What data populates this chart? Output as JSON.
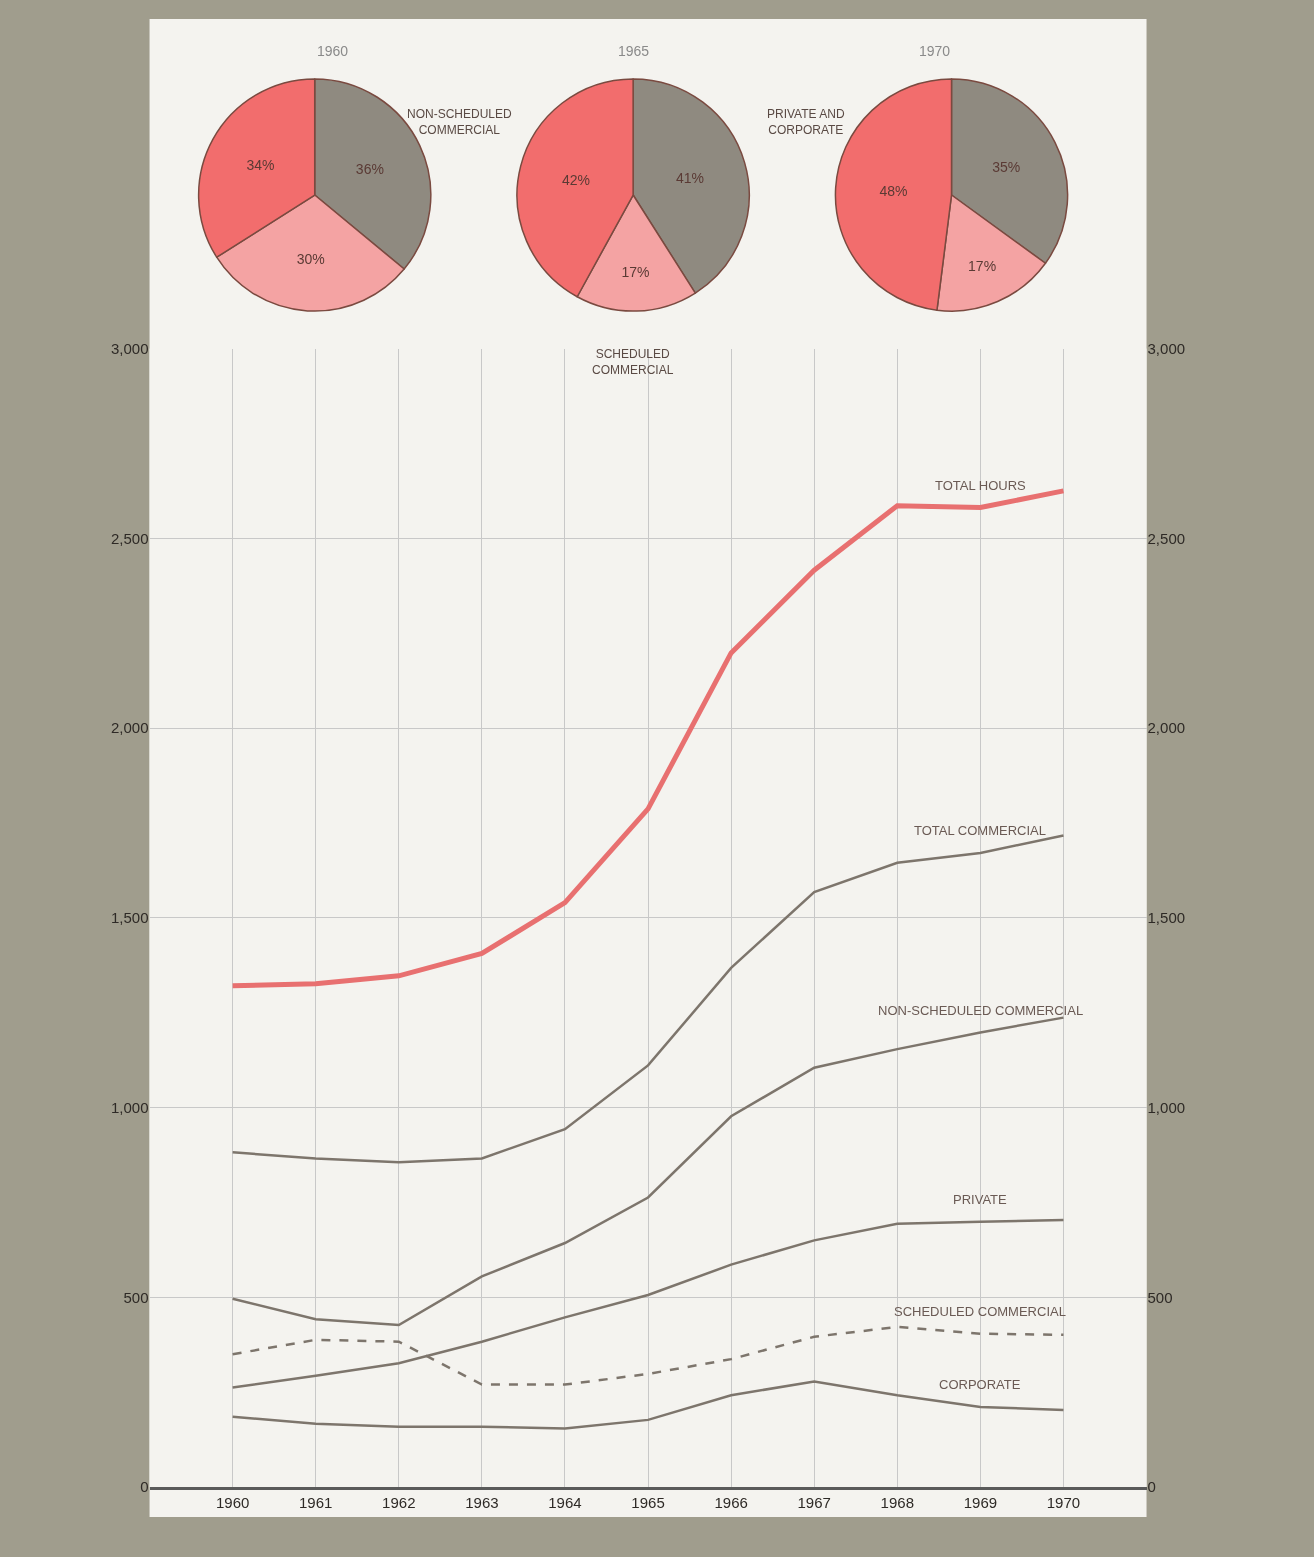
{
  "chart_data": [
    {
      "type": "pie",
      "title": "1960",
      "categories": [
        null,
        null,
        null
      ],
      "values": [
        36,
        30,
        34
      ],
      "colors": [
        "#8f8a80",
        "#f4a3a3",
        "#f26d6d"
      ],
      "value_labels": [
        "36%",
        "30%",
        "34%"
      ]
    },
    {
      "type": "pie",
      "title": "1965",
      "categories": [
        "PRIVATE AND CORPORATE",
        "SCHEDULED COMMERCIAL",
        "NON-SCHEDULED COMMERCIAL"
      ],
      "values": [
        41,
        17,
        42
      ],
      "colors": [
        "#8f8a80",
        "#f4a3a3",
        "#f26d6d"
      ],
      "value_labels": [
        "41%",
        "17%",
        "42%"
      ]
    },
    {
      "type": "pie",
      "title": "1970",
      "categories": [
        null,
        null,
        null
      ],
      "values": [
        35,
        17,
        48
      ],
      "colors": [
        "#8f8a80",
        "#f4a3a3",
        "#f26d6d"
      ],
      "value_labels": [
        "35%",
        "17%",
        "48%"
      ]
    },
    {
      "type": "line",
      "categories": [
        "1960",
        "1961",
        "1962",
        "1963",
        "1964",
        "1965",
        "1966",
        "1967",
        "1968",
        "1969",
        "1970"
      ],
      "ylim": [
        0,
        3000
      ],
      "yticks": [
        {
          "value": 0,
          "label": "0"
        },
        {
          "value": 500,
          "label": "500"
        },
        {
          "value": 1000,
          "label": "1,000"
        },
        {
          "value": 1500,
          "label": "1,500"
        },
        {
          "value": 2000,
          "label": "2,000"
        },
        {
          "value": 2500,
          "label": "2,500"
        },
        {
          "value": 3000,
          "label": "3,000"
        }
      ],
      "y2lim": [
        0,
        3000
      ],
      "y2ticks": [
        {
          "value": 0,
          "label": "0"
        },
        {
          "value": 500,
          "label": "500"
        },
        {
          "value": 1000,
          "label": "1,000"
        },
        {
          "value": 1500,
          "label": "1,500"
        },
        {
          "value": 2000,
          "label": "2,000"
        },
        {
          "value": 2500,
          "label": "2,500"
        },
        {
          "value": 3000,
          "label": "3,000"
        }
      ],
      "grid": true,
      "legend": false,
      "marker": "none",
      "series": [
        {
          "name": "TOTAL HOURS",
          "color": "#e87070",
          "values": [
            1321,
            1326,
            1347,
            1406,
            1540,
            1787,
            2198,
            2416,
            2586,
            2581,
            2625
          ]
        },
        {
          "name": "TOTAL COMMERCIAL",
          "color": "#7d756c",
          "values": [
            882,
            866,
            856,
            866,
            943,
            1111,
            1368,
            1568,
            1645,
            1671,
            1717
          ]
        },
        {
          "name": "NON-SCHEDULED COMMERCIAL",
          "color": "#7d756c",
          "values": [
            496,
            442,
            427,
            555,
            643,
            763,
            977,
            1105,
            1154,
            1198,
            1237
          ]
        },
        {
          "name": "PRIVATE",
          "color": "#7d756c",
          "values": [
            262,
            293,
            326,
            383,
            447,
            506,
            586,
            650,
            694,
            699,
            704
          ]
        },
        {
          "name": "SCHEDULED COMMERCIAL",
          "color": "#7d756c",
          "line_style": "dashed",
          "values": [
            350,
            388,
            383,
            270,
            270,
            298,
            337,
            396,
            422,
            404,
            401
          ]
        },
        {
          "name": "CORPORATE",
          "color": "#7d756c",
          "values": [
            185,
            167,
            159,
            159,
            154,
            177,
            242,
            278,
            242,
            211,
            203
          ]
        }
      ]
    }
  ]
}
